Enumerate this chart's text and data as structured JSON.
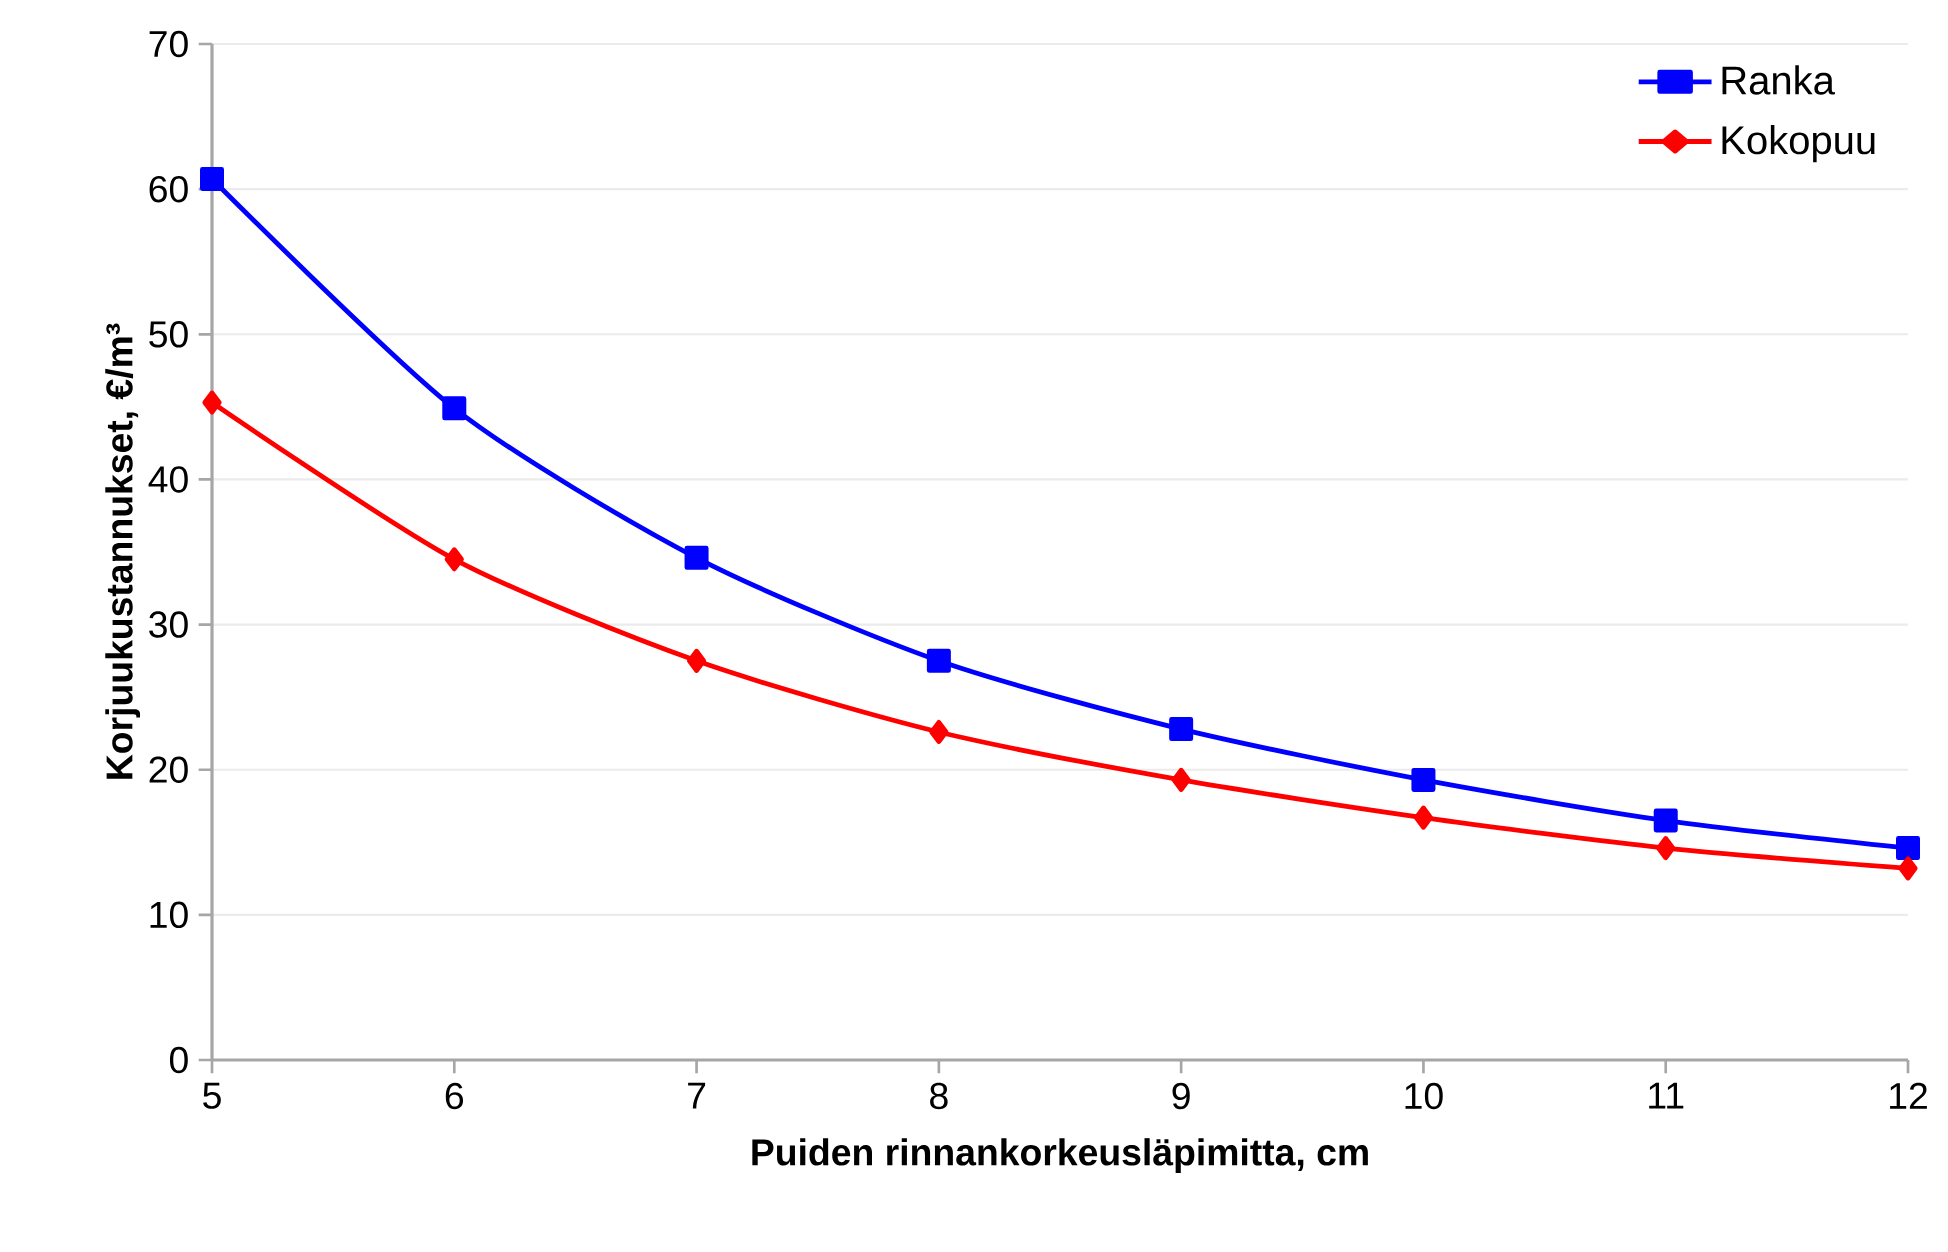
{
  "chart_data": {
    "type": "line",
    "xlabel": "Puiden rinnankorkeusläpimitta, cm",
    "ylabel": "Korjuukustannukset, €/m³",
    "x": [
      5,
      6,
      7,
      8,
      9,
      10,
      11,
      12
    ],
    "series": [
      {
        "name": "Ranka",
        "color": "#0000ff",
        "marker": "square",
        "values": [
          60.7,
          44.9,
          34.6,
          27.5,
          22.8,
          19.3,
          16.5,
          14.6
        ]
      },
      {
        "name": "Kokopuu",
        "color": "#ff0000",
        "marker": "diamond",
        "values": [
          45.3,
          34.5,
          27.5,
          22.6,
          19.3,
          16.7,
          14.6,
          13.2
        ]
      }
    ],
    "xlim": [
      5,
      12
    ],
    "xticks": [
      5,
      6,
      7,
      8,
      9,
      10,
      11,
      12
    ],
    "ylim": [
      0,
      70
    ],
    "yticks": [
      0,
      10,
      20,
      30,
      40,
      50,
      60,
      70
    ],
    "grid": "y",
    "legend": "top right",
    "line_style": "solid"
  }
}
